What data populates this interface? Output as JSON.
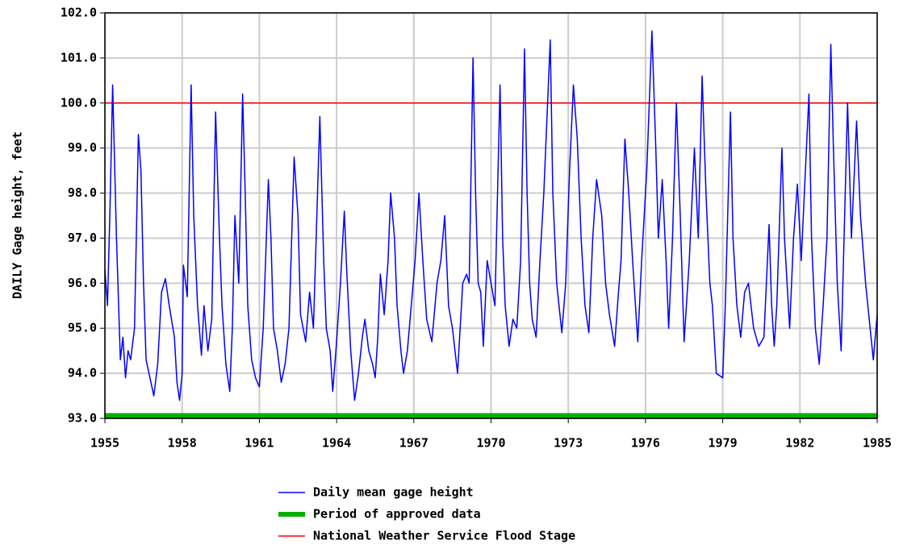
{
  "chart_data": {
    "type": "line",
    "ylabel": "DAILY Gage height, feet",
    "xlim": [
      1955,
      1985
    ],
    "xticks": [
      1955,
      1958,
      1961,
      1964,
      1967,
      1970,
      1973,
      1976,
      1979,
      1982,
      1985
    ],
    "ylim": [
      93,
      102
    ],
    "yticks": [
      {
        "value": 93,
        "label": "93.0"
      },
      {
        "value": 94,
        "label": "94.0"
      },
      {
        "value": 95,
        "label": "95.0"
      },
      {
        "value": 96,
        "label": "96.0"
      },
      {
        "value": 97,
        "label": "97.0"
      },
      {
        "value": 98,
        "label": "98.0"
      },
      {
        "value": 99,
        "label": "99.0"
      },
      {
        "value": 100,
        "label": "100.0"
      },
      {
        "value": 101,
        "label": "101.0"
      },
      {
        "value": 102,
        "label": "102.0"
      }
    ],
    "grid": true,
    "series": [
      {
        "name": "Daily mean gage height",
        "color": "#0000ff",
        "x": [
          1955.0,
          1955.1,
          1955.2,
          1955.3,
          1955.45,
          1955.6,
          1955.7,
          1955.8,
          1955.9,
          1956.0,
          1956.15,
          1956.3,
          1956.4,
          1956.5,
          1956.6,
          1956.75,
          1956.9,
          1957.05,
          1957.2,
          1957.35,
          1957.5,
          1957.7,
          1957.8,
          1957.9,
          1958.0,
          1958.05,
          1958.2,
          1958.35,
          1958.45,
          1958.6,
          1958.75,
          1958.85,
          1959.0,
          1959.15,
          1959.3,
          1959.45,
          1959.55,
          1959.7,
          1959.85,
          1959.95,
          1960.05,
          1960.2,
          1960.35,
          1960.45,
          1960.55,
          1960.7,
          1960.85,
          1961.0,
          1961.15,
          1961.35,
          1961.45,
          1961.55,
          1961.7,
          1961.85,
          1962.0,
          1962.15,
          1962.35,
          1962.5,
          1962.6,
          1962.8,
          1962.95,
          1963.1,
          1963.35,
          1963.5,
          1963.6,
          1963.75,
          1963.85,
          1964.0,
          1964.15,
          1964.3,
          1964.4,
          1964.55,
          1964.7,
          1964.85,
          1965.0,
          1965.1,
          1965.25,
          1965.4,
          1965.5,
          1965.6,
          1965.7,
          1965.85,
          1966.0,
          1966.1,
          1966.25,
          1966.35,
          1966.5,
          1966.6,
          1966.75,
          1966.9,
          1967.05,
          1967.2,
          1967.35,
          1967.5,
          1967.7,
          1967.9,
          1968.05,
          1968.2,
          1968.35,
          1968.5,
          1968.7,
          1968.9,
          1969.05,
          1969.15,
          1969.3,
          1969.4,
          1969.5,
          1969.6,
          1969.7,
          1969.85,
          1970.0,
          1970.15,
          1970.35,
          1970.45,
          1970.55,
          1970.7,
          1970.85,
          1971.0,
          1971.15,
          1971.3,
          1971.4,
          1971.5,
          1971.6,
          1971.75,
          1971.9,
          1972.05,
          1972.3,
          1972.4,
          1972.55,
          1972.75,
          1972.9,
          1973.05,
          1973.2,
          1973.35,
          1973.5,
          1973.65,
          1973.8,
          1973.95,
          1974.1,
          1974.3,
          1974.45,
          1974.6,
          1974.8,
          1974.95,
          1975.05,
          1975.2,
          1975.35,
          1975.5,
          1975.7,
          1975.85,
          1976.05,
          1976.25,
          1976.4,
          1976.5,
          1976.65,
          1976.8,
          1976.9,
          1977.05,
          1977.2,
          1977.35,
          1977.5,
          1977.7,
          1977.9,
          1978.05,
          1978.2,
          1978.35,
          1978.5,
          1978.6,
          1978.75,
          1979.0,
          1979.1,
          1979.3,
          1979.4,
          1979.55,
          1979.7,
          1979.85,
          1980.0,
          1980.2,
          1980.4,
          1980.6,
          1980.8,
          1980.9,
          1981.0,
          1981.1,
          1981.3,
          1981.4,
          1981.5,
          1981.6,
          1981.75,
          1981.9,
          1982.05,
          1982.35,
          1982.45,
          1982.6,
          1982.75,
          1982.9,
          1983.05,
          1983.2,
          1983.3,
          1983.45,
          1983.6,
          1983.85,
          1984.0,
          1984.2,
          1984.35,
          1984.55,
          1984.85,
          1985.0
        ],
        "values": [
          96.3,
          95.5,
          97.7,
          100.4,
          97,
          94.3,
          94.8,
          93.9,
          94.5,
          94.3,
          95,
          99.3,
          98.5,
          96,
          94.3,
          93.9,
          93.5,
          94.2,
          95.8,
          96.1,
          95.5,
          94.8,
          93.8,
          93.4,
          94,
          96.4,
          95.7,
          100.4,
          97.5,
          95.5,
          94.4,
          95.5,
          94.5,
          95.2,
          99.8,
          97,
          95.5,
          94.2,
          93.6,
          95,
          97.5,
          96,
          100.2,
          98,
          95.5,
          94.3,
          93.9,
          93.7,
          95,
          98.3,
          97,
          95,
          94.5,
          93.8,
          94.2,
          95,
          98.8,
          97.5,
          95.3,
          94.7,
          95.8,
          95,
          99.7,
          96.5,
          95,
          94.5,
          93.6,
          94.7,
          96,
          97.6,
          96.2,
          94.5,
          93.4,
          94,
          94.8,
          95.2,
          94.5,
          94.2,
          93.9,
          94.8,
          96.2,
          95.3,
          96.5,
          98,
          97,
          95.5,
          94.5,
          94,
          94.5,
          95.5,
          96.5,
          98,
          96.5,
          95.2,
          94.7,
          96,
          96.5,
          97.5,
          95.5,
          95,
          94,
          96,
          96.2,
          96,
          101,
          98,
          96,
          95.8,
          94.6,
          96.5,
          96,
          95.5,
          100.4,
          97,
          95.5,
          94.6,
          95.2,
          95,
          96.5,
          101.2,
          98,
          96,
          95.2,
          94.8,
          96.5,
          98,
          101.4,
          98,
          96,
          94.9,
          96,
          98.5,
          100.4,
          99.2,
          97,
          95.5,
          94.9,
          97,
          98.3,
          97.5,
          96,
          95.3,
          94.6,
          95.8,
          96.5,
          99.2,
          98,
          96.5,
          94.7,
          96.5,
          98.5,
          101.6,
          99,
          97,
          98.3,
          96.5,
          95,
          97,
          100,
          97.5,
          94.7,
          96.5,
          99,
          97,
          100.6,
          98,
          96,
          95.5,
          94,
          93.9,
          95.5,
          99.8,
          97,
          95.5,
          94.8,
          95.8,
          96,
          95,
          94.6,
          94.8,
          97.3,
          95.5,
          94.6,
          95.5,
          99,
          97,
          96,
          95,
          97,
          98.2,
          96.5,
          100.2,
          97,
          95,
          94.2,
          95.5,
          97,
          101.3,
          99,
          96,
          94.5,
          100,
          97,
          99.6,
          97.5,
          96,
          94.3,
          95.3
        ]
      }
    ],
    "approved_period": {
      "name": "Period of approved data",
      "color": "#00b000",
      "x": [
        1955,
        1985
      ]
    },
    "flood_stage": {
      "name": "National Weather Service Flood Stage",
      "color": "#ff0000",
      "value": 100
    }
  }
}
